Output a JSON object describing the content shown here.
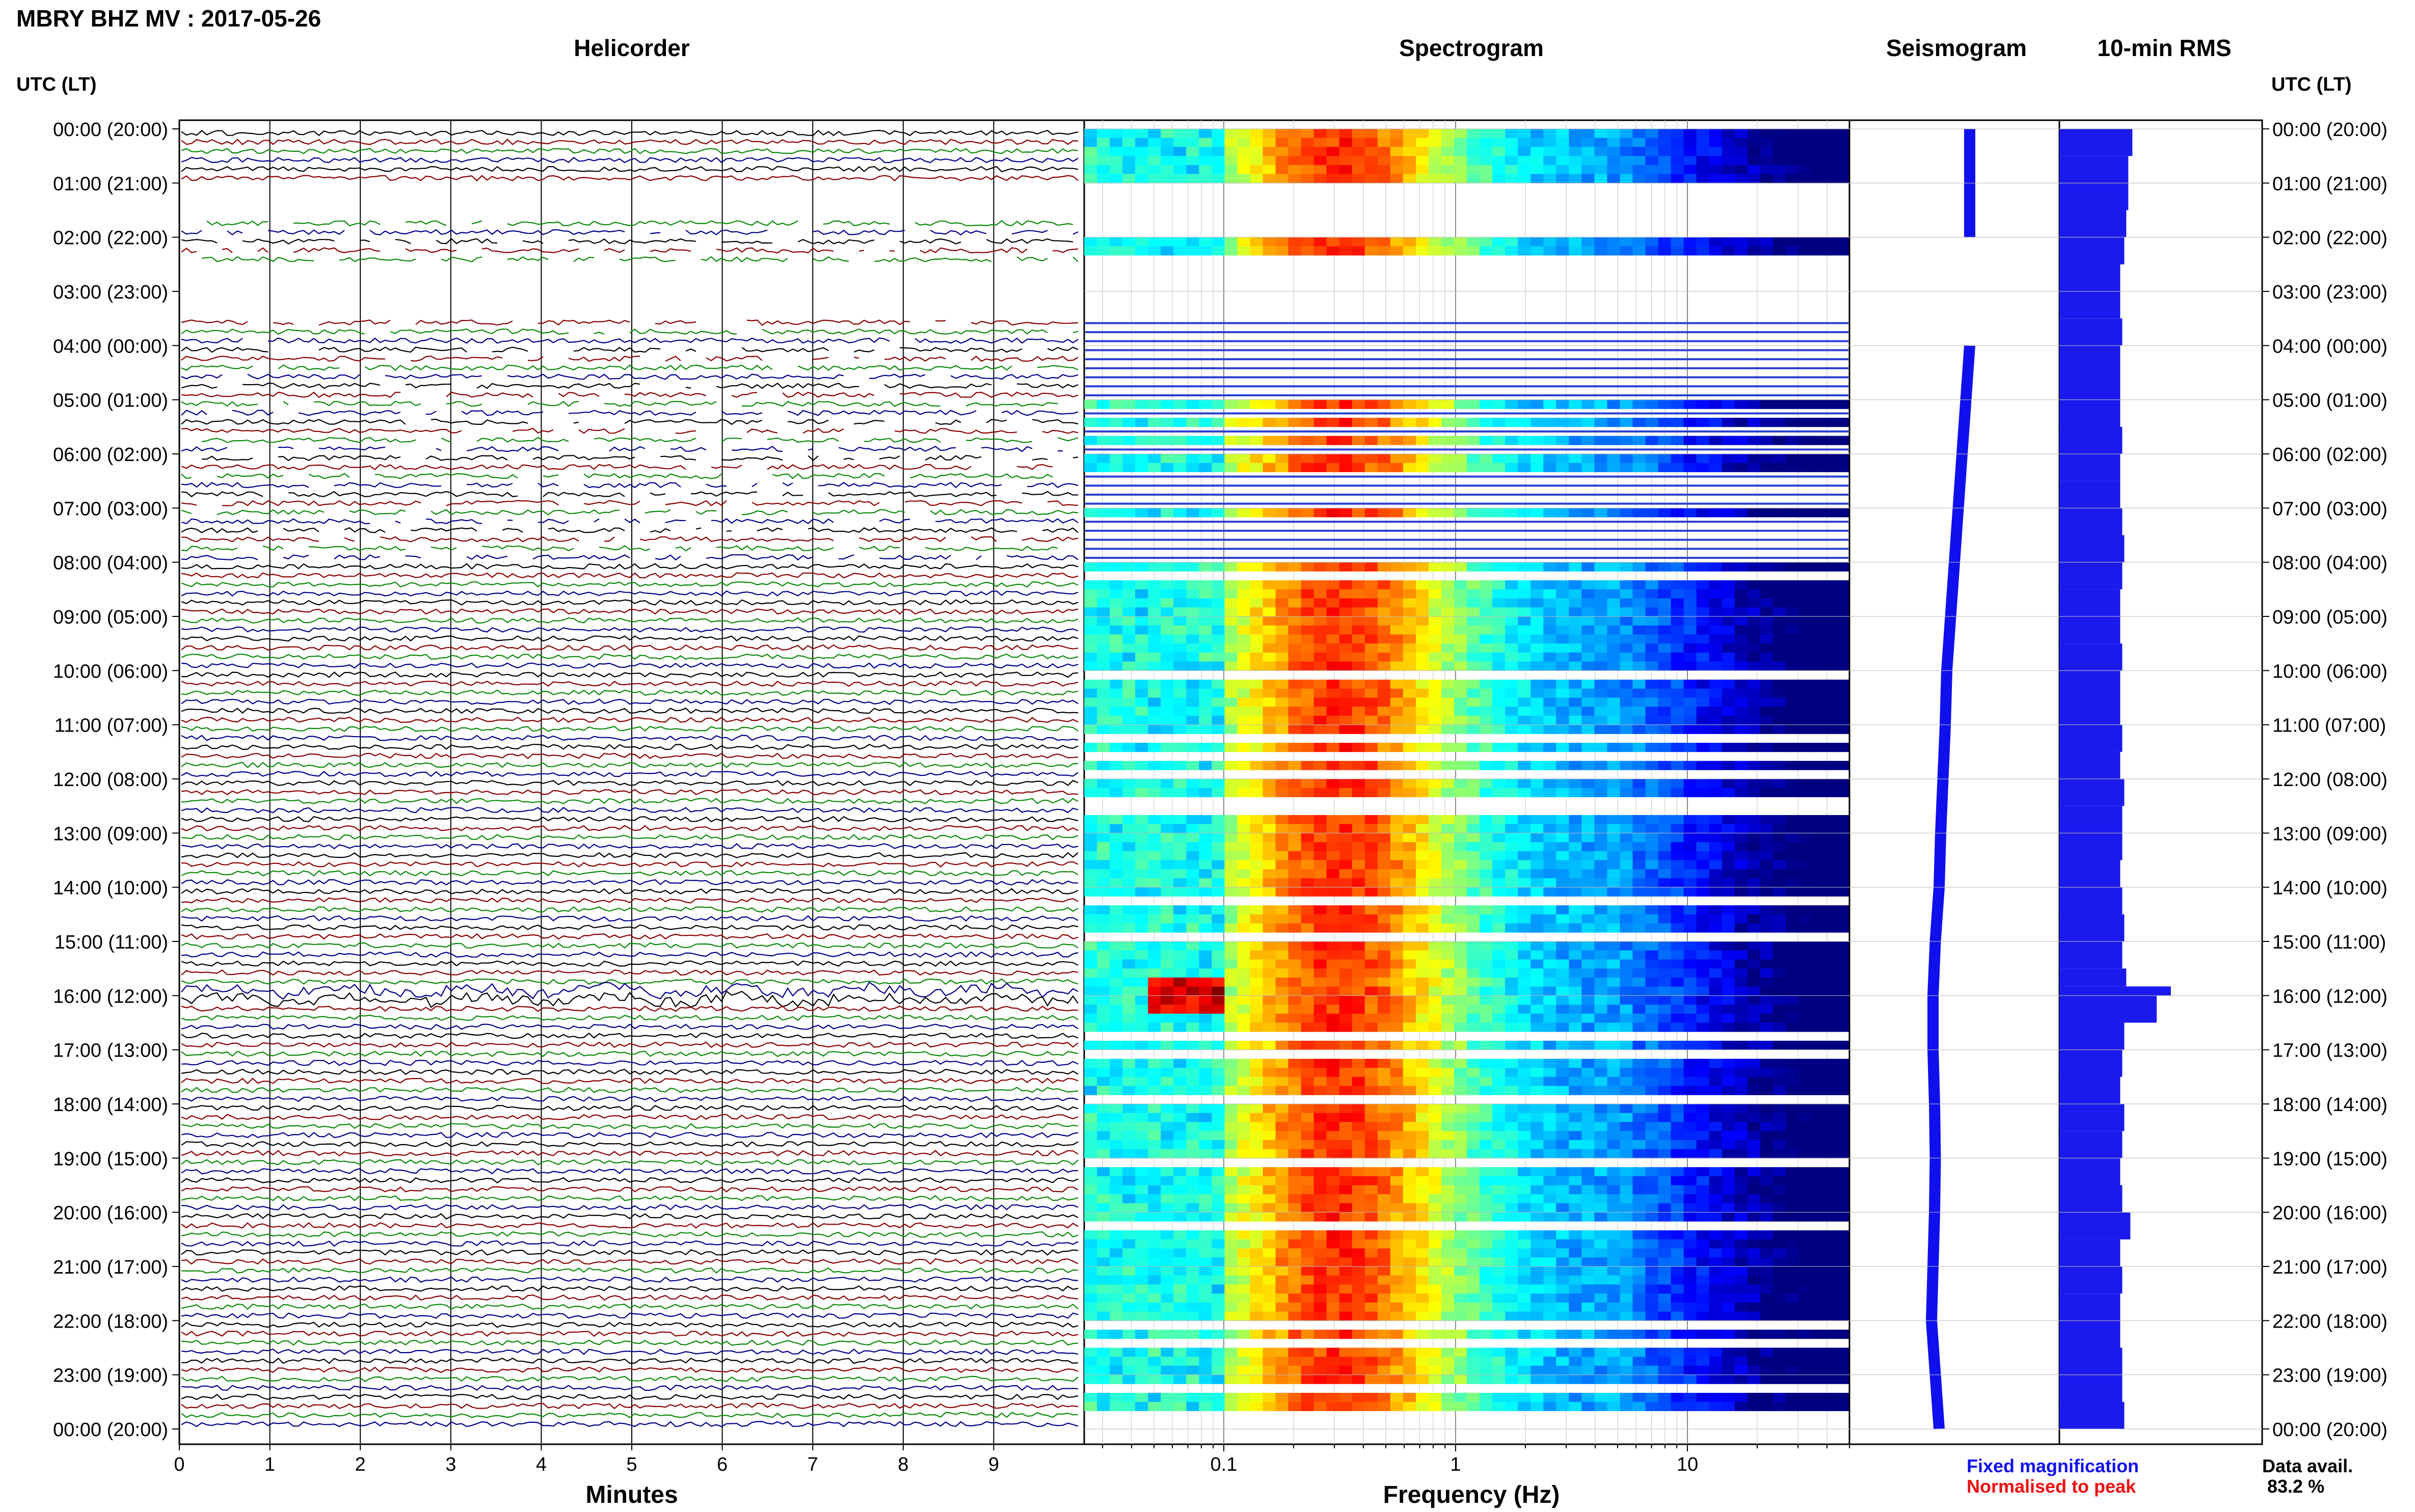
{
  "title": "MBRY BHZ MV : 2017-05-26",
  "panels": {
    "helicorder": "Helicorder",
    "spectrogram": "Spectrogram",
    "seismogram": "Seismogram",
    "rms": "10-min RMS"
  },
  "time_axis_label": "UTC (LT)",
  "time_ticks": [
    "00:00 (20:00)",
    "01:00 (21:00)",
    "02:00 (22:00)",
    "03:00 (23:00)",
    "04:00 (00:00)",
    "05:00 (01:00)",
    "06:00 (02:00)",
    "07:00 (03:00)",
    "08:00 (04:00)",
    "09:00 (05:00)",
    "10:00 (06:00)",
    "11:00 (07:00)",
    "12:00 (08:00)",
    "13:00 (09:00)",
    "14:00 (10:00)",
    "15:00 (11:00)",
    "16:00 (12:00)",
    "17:00 (13:00)",
    "18:00 (14:00)",
    "19:00 (15:00)",
    "20:00 (16:00)",
    "21:00 (17:00)",
    "22:00 (18:00)",
    "23:00 (19:00)",
    "00:00 (20:00)"
  ],
  "legend": {
    "fixed": "Fixed magnification",
    "normalised": "Normalised to peak",
    "fixed_color": "#1010ee",
    "normalised_color": "#ee1010"
  },
  "availability": {
    "label": "Data avail.",
    "value": "83.2 %"
  },
  "colors": {
    "trace_cycle": [
      "#000000",
      "#8b0000",
      "#0a8a0a",
      "#00008b"
    ],
    "rms_bar": "#1a1aee"
  },
  "chart_data": [
    {
      "type": "line",
      "panel": "Helicorder",
      "xlabel": "Minutes",
      "x_ticks": [
        "0",
        "1",
        "2",
        "3",
        "4",
        "5",
        "6",
        "7",
        "8",
        "9"
      ],
      "xlim": [
        0,
        10
      ],
      "ylim_hours": [
        0,
        24
      ],
      "gaps_utc_hours": [
        [
          1.0,
          1.6
        ],
        [
          2.5,
          3.4
        ]
      ],
      "event_utc_hour": 15.9
    },
    {
      "type": "heatmap",
      "panel": "Spectrogram",
      "xlabel": "Frequency (Hz)",
      "x_scale": "log",
      "xlim": [
        0.025,
        50
      ],
      "x_ticks": [
        "0.1",
        "1",
        "10"
      ],
      "colormap": "jet",
      "gaps_utc_hours": [
        [
          1.0,
          1.9
        ],
        [
          2.3,
          3.4
        ]
      ],
      "event": {
        "utc_hour": 15.9,
        "freq_hz": [
          0.05,
          0.1
        ]
      }
    },
    {
      "type": "line",
      "panel": "Seismogram",
      "x": [
        0,
        1,
        2,
        3,
        4,
        5,
        6,
        7,
        8,
        9,
        10,
        11,
        12,
        13,
        14,
        15,
        16,
        17,
        18,
        19,
        20,
        21,
        22,
        23,
        24
      ],
      "offset": [
        0.2,
        0.2,
        0.2,
        null,
        0.2,
        0.15,
        0.1,
        0.05,
        0.0,
        -0.05,
        -0.1,
        -0.12,
        -0.15,
        -0.18,
        -0.2,
        -0.25,
        -0.28,
        -0.28,
        -0.26,
        -0.25,
        -0.26,
        -0.28,
        -0.3,
        -0.25,
        -0.2
      ]
    },
    {
      "type": "bar",
      "panel": "10-min RMS",
      "series": [
        {
          "name": "RMS",
          "x": [
            0,
            0.5,
            1.0,
            1.5,
            2.0,
            2.5,
            3.5,
            4.0,
            4.5,
            5.0,
            5.5,
            6.0,
            6.5,
            7.0,
            7.5,
            8.0,
            8.5,
            9.0,
            9.5,
            10.0,
            10.5,
            11.0,
            11.5,
            12.0,
            12.5,
            13.0,
            13.5,
            14.0,
            14.5,
            15.0,
            15.5,
            15.83,
            16.0,
            16.5,
            17.0,
            17.5,
            18.0,
            18.5,
            19.0,
            19.5,
            20.0,
            20.5,
            21.0,
            21.5,
            22.0,
            22.5,
            23.0,
            23.5
          ],
          "values": [
            0.36,
            0.34,
            0.34,
            0.33,
            0.32,
            0.3,
            0.31,
            0.3,
            0.3,
            0.3,
            0.31,
            0.3,
            0.3,
            0.31,
            0.32,
            0.31,
            0.3,
            0.3,
            0.31,
            0.3,
            0.3,
            0.31,
            0.3,
            0.32,
            0.31,
            0.31,
            0.3,
            0.31,
            0.32,
            0.31,
            0.33,
            0.55,
            0.48,
            0.32,
            0.31,
            0.3,
            0.32,
            0.31,
            0.3,
            0.31,
            0.35,
            0.3,
            0.31,
            0.3,
            0.3,
            0.31,
            0.31,
            0.32
          ]
        }
      ]
    }
  ]
}
